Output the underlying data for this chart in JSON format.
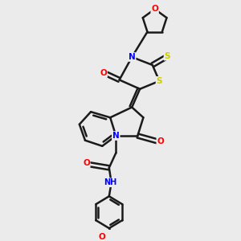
{
  "bg_color": "#ebebeb",
  "atom_colors": {
    "N": "#0000ff",
    "O": "#ff0000",
    "S": "#cccc00",
    "C": "#1a1a1a",
    "H": "#1a1a1a"
  },
  "bond_color": "#1a1a1a",
  "bond_width": 1.8,
  "fig_width": 3.0,
  "fig_height": 3.0,
  "dpi": 100,
  "xlim": [
    0,
    10
  ],
  "ylim": [
    0,
    10
  ]
}
